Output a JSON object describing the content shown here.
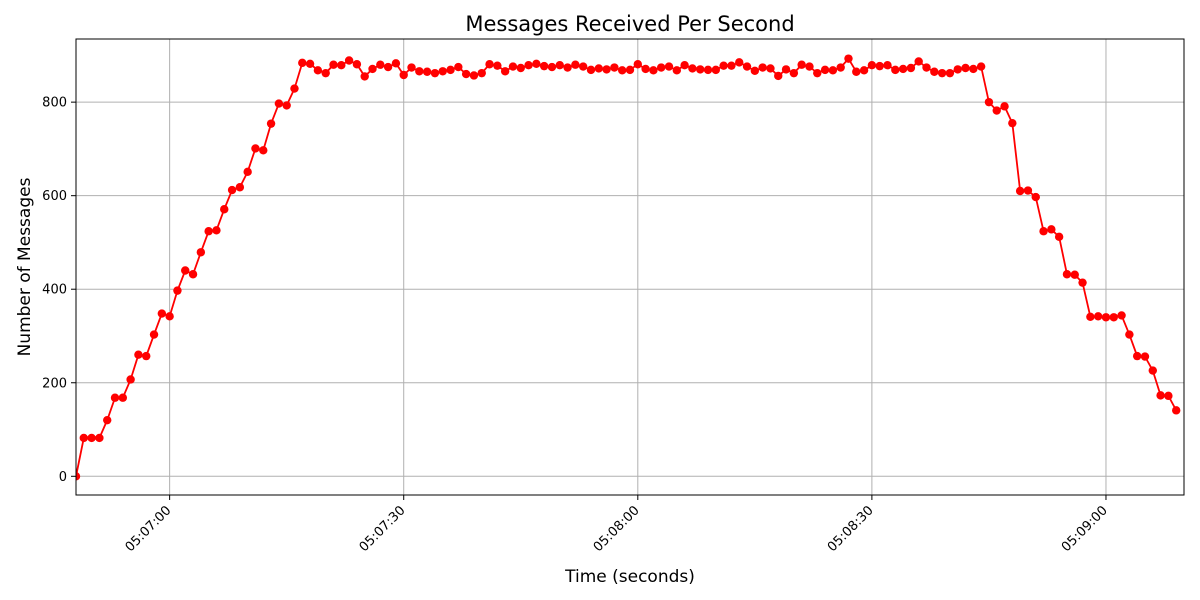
{
  "chart_data": {
    "type": "line",
    "title": "Messages Received Per Second",
    "xlabel": "Time (seconds)",
    "ylabel": "Number of Messages",
    "x_start": "05:06:48",
    "x_step_seconds": 1,
    "xlim": [
      "05:06:48",
      "05:09:10"
    ],
    "ylim": [
      -40,
      935
    ],
    "x_ticks": [
      "05:07:00",
      "05:07:30",
      "05:08:00",
      "05:08:30",
      "05:09:00"
    ],
    "y_ticks": [
      0,
      200,
      400,
      600,
      800
    ],
    "grid": true,
    "color": "#ff0000",
    "series": [
      {
        "values": [
          0,
          82,
          82,
          82,
          120,
          168,
          168,
          207,
          260,
          257,
          303,
          348,
          342,
          397,
          440,
          432,
          479,
          524,
          526,
          571,
          612,
          618,
          651,
          701,
          697,
          754,
          797,
          793,
          829,
          884,
          882,
          868,
          862,
          880,
          879,
          889,
          881,
          855,
          871,
          880,
          875,
          883,
          858,
          874,
          866,
          865,
          862,
          866,
          869,
          875,
          860,
          857,
          862,
          881,
          878,
          866,
          876,
          873,
          879,
          882,
          877,
          875,
          879,
          874,
          880,
          876,
          869,
          872,
          870,
          874,
          868,
          869,
          881,
          871,
          868,
          874,
          876,
          868,
          879,
          872,
          870,
          869,
          869,
          878,
          878,
          885,
          876,
          867,
          874,
          872,
          856,
          870,
          862,
          880,
          876,
          862,
          869,
          868,
          874,
          893,
          865,
          868,
          879,
          877,
          879,
          869,
          871,
          873,
          887,
          874,
          865,
          862,
          862,
          870,
          873,
          871,
          876,
          800,
          782,
          791,
          755,
          610,
          611,
          597,
          524,
          528,
          512,
          432,
          431,
          414,
          341,
          342,
          340,
          340,
          344,
          303,
          257,
          256,
          226,
          173,
          172,
          141
        ]
      }
    ]
  }
}
